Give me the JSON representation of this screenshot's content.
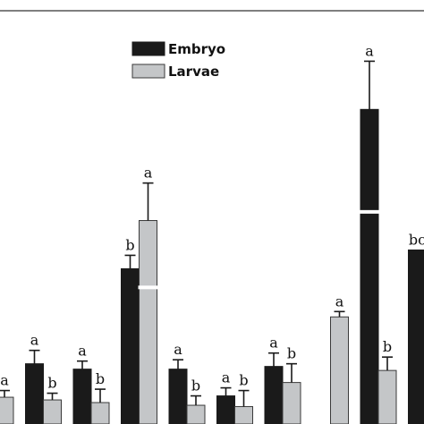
{
  "chart_data": {
    "type": "bar",
    "title": "",
    "xlabel": "",
    "ylabel": "",
    "legend": {
      "placement": "top-center"
    },
    "colors": {
      "Embryo": "#1a1a1a",
      "Larvae": "#c4c6c8"
    },
    "ylim": [
      0,
      290
    ],
    "series": [
      {
        "name": "Embryo",
        "values": [
          null,
          45,
          41,
          116,
          41,
          21,
          43,
          null,
          235,
          130
        ],
        "errors": [
          null,
          10,
          6,
          10,
          7,
          6,
          10,
          null,
          36,
          null
        ],
        "letters": [
          null,
          "a",
          "a",
          "b",
          "a",
          "a",
          "a",
          null,
          "a",
          "bc"
        ],
        "broken": [
          false,
          false,
          false,
          false,
          false,
          false,
          false,
          false,
          true,
          false
        ]
      },
      {
        "name": "Larvae",
        "values": [
          20,
          18,
          16,
          152,
          14,
          13,
          31,
          80,
          40,
          null
        ],
        "errors": [
          5,
          5,
          10,
          28,
          7,
          12,
          14,
          4,
          10,
          null
        ],
        "letters": [
          "a",
          "b",
          "b",
          "a",
          "b",
          "b",
          "b",
          "a",
          "b",
          null
        ],
        "broken": [
          false,
          false,
          false,
          true,
          false,
          false,
          false,
          false,
          false,
          false
        ]
      }
    ],
    "categories": [
      "",
      "",
      "",
      "",
      "",
      "",
      "",
      "",
      "",
      ""
    ]
  }
}
